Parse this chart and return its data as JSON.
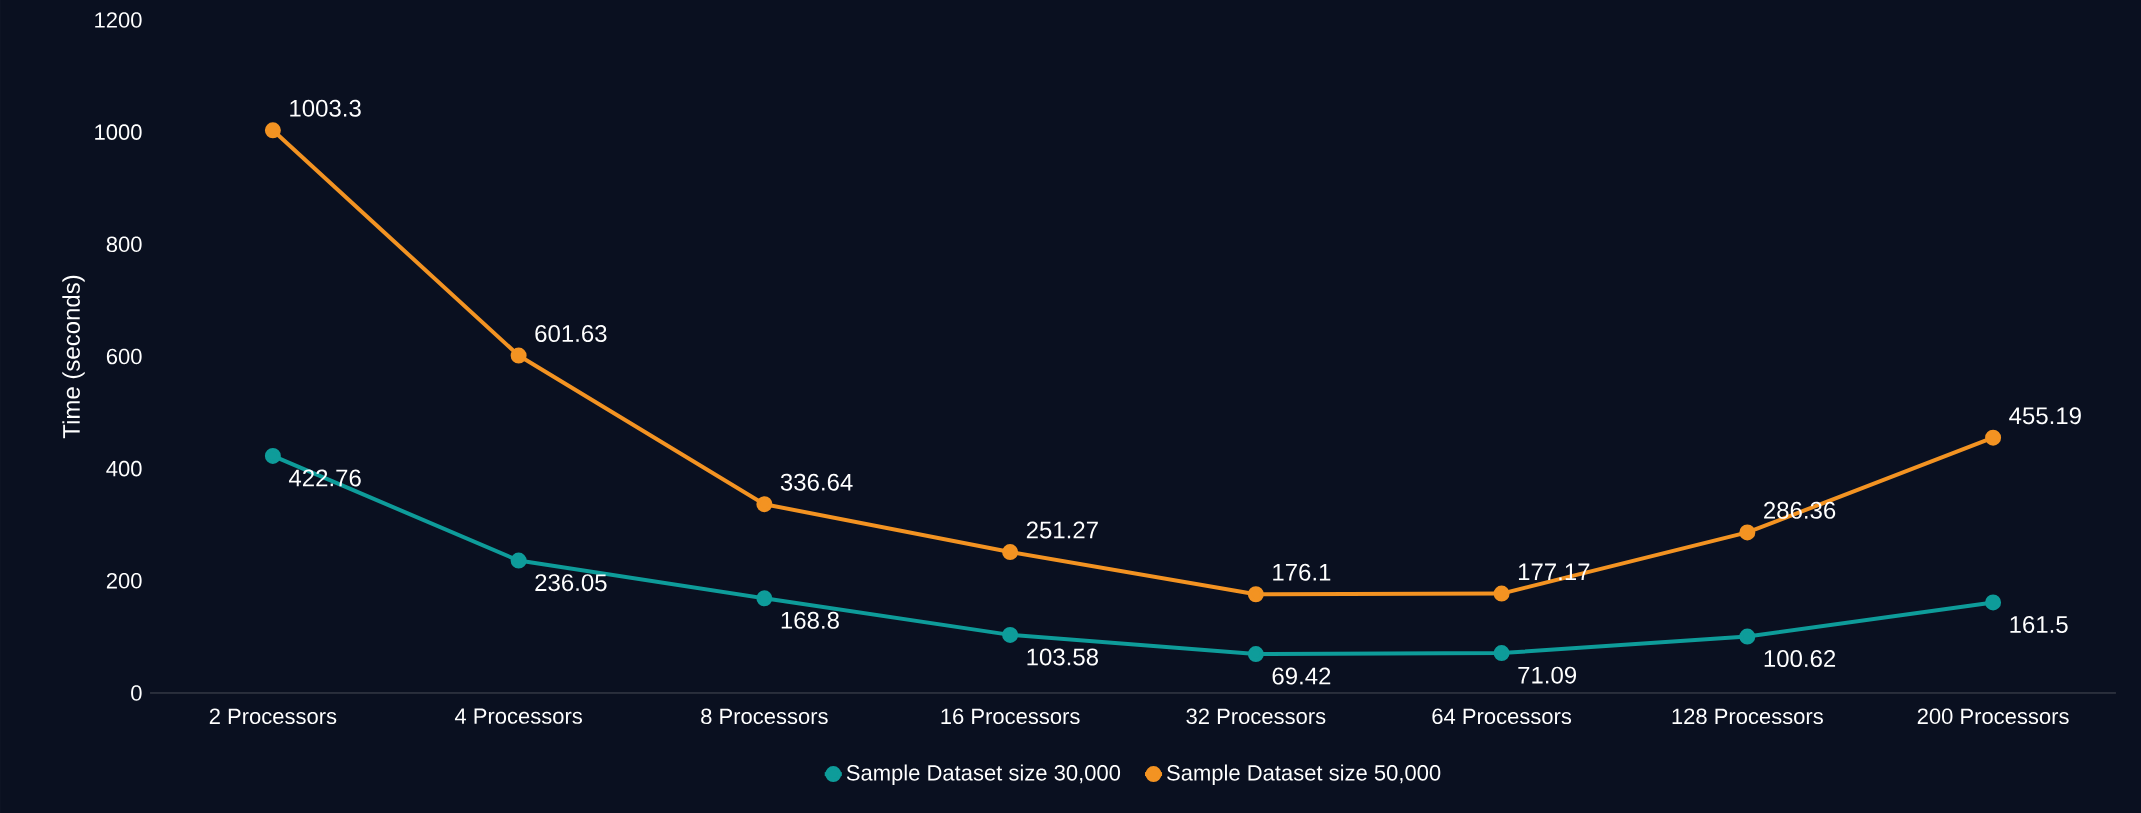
{
  "chart_data": {
    "type": "line",
    "ylabel": "Time (seconds)",
    "categories": [
      "2 Processors",
      "4 Processors",
      "8 Processors",
      "16 Processors",
      "32 Processors",
      "64 Processors",
      "128 Processors",
      "200 Processors"
    ],
    "series": [
      {
        "name": "Sample Dataset size 30,000",
        "color": "#0e9c9a",
        "values": [
          422.76,
          236.05,
          168.8,
          103.58,
          69.42,
          71.09,
          100.62,
          161.5
        ]
      },
      {
        "name": "Sample Dataset size 50,000",
        "color": "#f39322",
        "values": [
          1003.3,
          601.63,
          336.64,
          251.27,
          176.1,
          177.17,
          286.36,
          455.19
        ]
      }
    ],
    "ylim": [
      0,
      1200
    ],
    "yticks": [
      0,
      200,
      400,
      600,
      800,
      1000,
      1200
    ],
    "data_labels": true,
    "marker": "circle",
    "line_style": "solid",
    "legend": "bottom",
    "grid": false
  }
}
